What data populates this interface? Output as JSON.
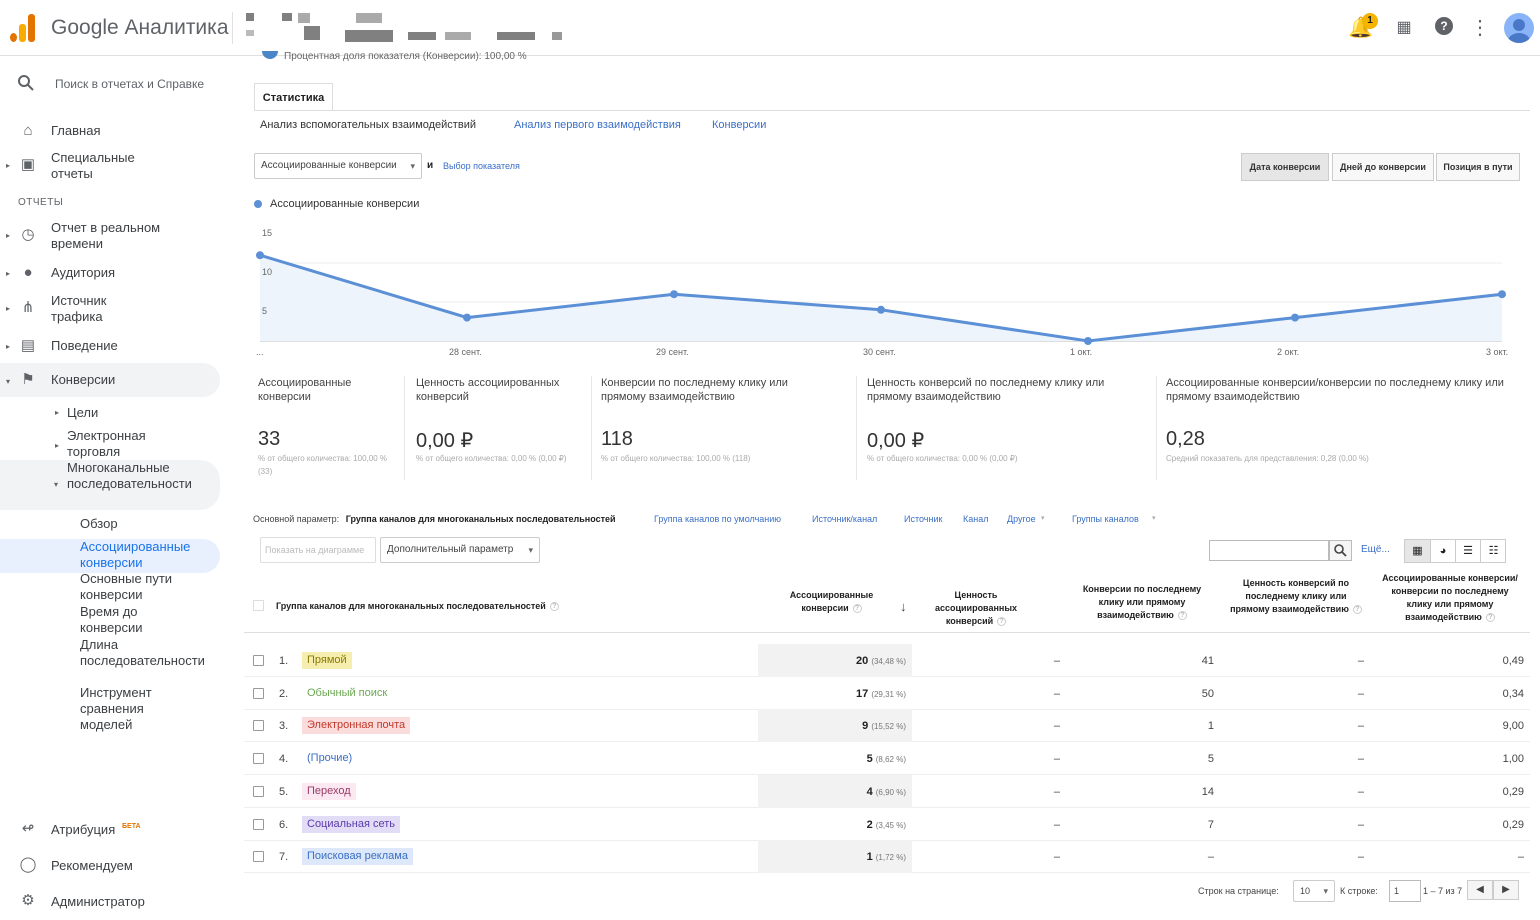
{
  "header": {
    "app_title": "Google Аналитика",
    "notification_count": "1"
  },
  "sidebar": {
    "search_placeholder": "Поиск в отчетах и Справке",
    "home": "Главная",
    "custom_reports": "Специальные отчеты",
    "reports_heading": "ОТЧЕТЫ",
    "realtime": "Отчет в реальном времени",
    "audience": "Аудитория",
    "acquisition": "Источник трафика",
    "behavior": "Поведение",
    "conversions": "Конверсии",
    "goals": "Цели",
    "ecommerce": "Электронная торговля",
    "mcf": "Многоканальные последовательности",
    "overview": "Обзор",
    "assisted": "Ассоциированные конверсии",
    "top_paths": "Основные пути конверсии",
    "time_lag": "Время до конверсии",
    "path_length": "Длина последовательности",
    "model_comparison": "Инструмент сравнения моделей",
    "attribution": "Атрибуция",
    "beta": "БЕТА",
    "discover": "Рекомендуем",
    "admin": "Администратор"
  },
  "main": {
    "top_cut_text": "Процентная доля показателя (Конверсии): 100,00 %",
    "tab_stats": "Статистика",
    "subtabs": [
      "Анализ вспомогательных взаимодействий",
      "Анализ первого взаимодействия",
      "Конверсии"
    ],
    "metric_select": "Ассоциированные конверсии",
    "and_label": "и",
    "choose_metric": "Выбор показателя",
    "view_buttons": [
      "Дата конверсии",
      "Дней до конверсии",
      "Позиция в пути"
    ],
    "legend_label": "Ассоциированные конверсии",
    "x_start": "..."
  },
  "chart_data": {
    "type": "line",
    "series": [
      {
        "name": "Ассоциированные конверсии",
        "values": [
          11,
          3,
          6,
          4,
          0,
          3,
          6
        ]
      }
    ],
    "categories": [
      "",
      "28 сент.",
      "29 сент.",
      "30 сент.",
      "1 окт.",
      "2 окт.",
      "3 окт."
    ],
    "yticks": [
      "15",
      "10",
      "5"
    ],
    "ylim": [
      0,
      15
    ],
    "color": "#5b8fd6"
  },
  "metrics": [
    {
      "label": "Ассоциированные конверсии",
      "value": "33",
      "sub": "% от общего количества: 100,00 % (33)"
    },
    {
      "label": "Ценность ассоциированных конверсий",
      "value": "0,00 ₽",
      "sub": "% от общего количества: 0,00 % (0,00 ₽)"
    },
    {
      "label": "Конверсии по последнему клику или прямому взаимодействию",
      "value": "118",
      "sub": "% от общего количества: 100,00 % (118)"
    },
    {
      "label": "Ценность конверсий по последнему клику или прямому взаимодействию",
      "value": "0,00 ₽",
      "sub": "% от общего количества: 0,00 % (0,00 ₽)"
    },
    {
      "label": "Ассоциированные конверсии/конверсии по последнему клику или прямому взаимодействию",
      "value": "0,28",
      "sub": "Средний показатель для представления: 0,28 (0,00 %)"
    }
  ],
  "params": {
    "label": "Основной параметр:",
    "active": "Группа каналов для многоканальных последовательностей",
    "links": [
      "Группа каналов по умолчанию",
      "Источник/канал",
      "Источник",
      "Канал",
      "Другое",
      "Группы каналов"
    ],
    "plot_rows": "Показать на диаграмме",
    "secondary": "Дополнительный параметр",
    "more": "Ещё..."
  },
  "table": {
    "headers": [
      "Группа каналов для многоканальных последовательностей",
      "Ассоциированные конверсии",
      "Ценность ассоциированных конверсий",
      "Конверсии по последнему клику или прямому взаимодействию",
      "Ценность конверсий по последнему клику или прямому взаимодействию",
      "Ассоциированные конверсии/конверсии по последнему клику или прямому взаимодействию"
    ],
    "rows": [
      {
        "n": "1.",
        "channel": "Прямой",
        "assoc": "20",
        "pct": "(34,48 %)",
        "value": "–",
        "last": "41",
        "last_value": "–",
        "ratio": "0,49",
        "bg": "#f6eeae",
        "fg": "#8a7a00"
      },
      {
        "n": "2.",
        "channel": "Обычный поиск",
        "assoc": "17",
        "pct": "(29,31 %)",
        "value": "–",
        "last": "50",
        "last_value": "–",
        "ratio": "0,34",
        "bg": "#ffffff",
        "fg": "#6aa84f"
      },
      {
        "n": "3.",
        "channel": "Электронная почта",
        "assoc": "9",
        "pct": "(15,52 %)",
        "value": "–",
        "last": "1",
        "last_value": "–",
        "ratio": "9,00",
        "bg": "#fbdcdc",
        "fg": "#c0392b"
      },
      {
        "n": "4.",
        "channel": "(Прочие)",
        "assoc": "5",
        "pct": "(8,62 %)",
        "value": "–",
        "last": "5",
        "last_value": "–",
        "ratio": "1,00",
        "bg": "#ffffff",
        "fg": "#3a6fc7"
      },
      {
        "n": "5.",
        "channel": "Переход",
        "assoc": "4",
        "pct": "(6,90 %)",
        "value": "–",
        "last": "14",
        "last_value": "–",
        "ratio": "0,29",
        "bg": "#fbe8f0",
        "fg": "#9c3a6a"
      },
      {
        "n": "6.",
        "channel": "Социальная сеть",
        "assoc": "2",
        "pct": "(3,45 %)",
        "value": "–",
        "last": "7",
        "last_value": "–",
        "ratio": "0,29",
        "bg": "#e3dcf7",
        "fg": "#5b3aa8"
      },
      {
        "n": "7.",
        "channel": "Поисковая реклама",
        "assoc": "1",
        "pct": "(1,72 %)",
        "value": "–",
        "last": "–",
        "last_value": "–",
        "ratio": "–",
        "bg": "#dde8fa",
        "fg": "#3a6fc7"
      }
    ]
  },
  "footer": {
    "rows_per_page": "Строк на странице:",
    "rows_value": "10",
    "goto": "К строке:",
    "goto_value": "1",
    "range": "1 – 7 из 7"
  }
}
